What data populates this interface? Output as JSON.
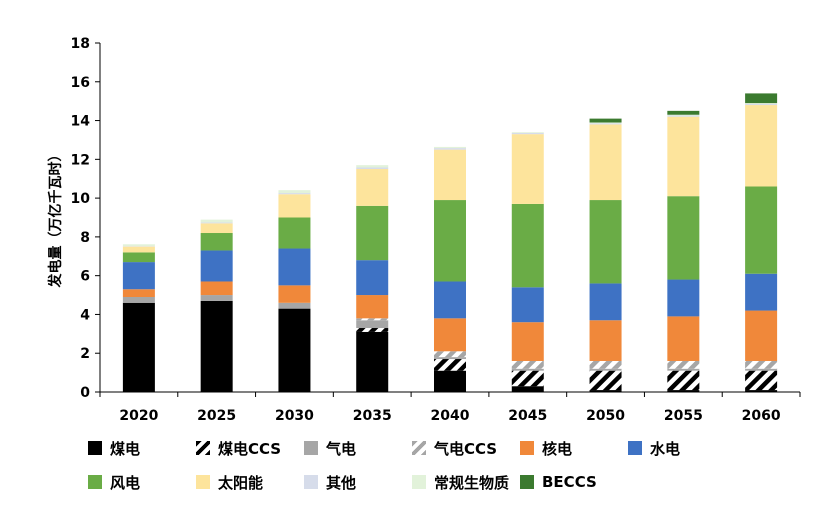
{
  "chart_data": {
    "type": "bar",
    "stacked": true,
    "ylabel": "发电量（万亿千瓦时）",
    "xlabel": "",
    "ylim": [
      0,
      18
    ],
    "yticks": [
      0,
      2,
      4,
      6,
      8,
      10,
      12,
      14,
      16,
      18
    ],
    "categories": [
      "2020",
      "2025",
      "2030",
      "2035",
      "2040",
      "2045",
      "2050",
      "2055",
      "2060"
    ],
    "legend_position": "bottom",
    "grid": false,
    "series": [
      {
        "name": "煤电",
        "color": "#000000",
        "pattern": "solid",
        "values": [
          4.6,
          4.7,
          4.3,
          3.1,
          1.1,
          0.3,
          0.1,
          0.1,
          0.1
        ]
      },
      {
        "name": "煤电CCS",
        "color": "#000000",
        "pattern": "hatch",
        "values": [
          0,
          0,
          0,
          0.2,
          0.6,
          0.8,
          1.0,
          1.0,
          1.0
        ]
      },
      {
        "name": "气电",
        "color": "#a6a6a6",
        "pattern": "solid",
        "values": [
          0.3,
          0.3,
          0.3,
          0.4,
          0.1,
          0.1,
          0.1,
          0.1,
          0.1
        ]
      },
      {
        "name": "气电CCS",
        "color": "#a6a6a6",
        "pattern": "hatch",
        "values": [
          0,
          0,
          0,
          0.1,
          0.3,
          0.4,
          0.4,
          0.4,
          0.4
        ]
      },
      {
        "name": "核电",
        "color": "#f0883a",
        "pattern": "solid",
        "values": [
          0.4,
          0.7,
          0.9,
          1.2,
          1.7,
          2.0,
          2.1,
          2.3,
          2.6
        ]
      },
      {
        "name": "水电",
        "color": "#3e72c4",
        "pattern": "solid",
        "values": [
          1.4,
          1.6,
          1.9,
          1.8,
          1.9,
          1.8,
          1.9,
          1.9,
          1.9
        ]
      },
      {
        "name": "风电",
        "color": "#6aac46",
        "pattern": "solid",
        "values": [
          0.5,
          0.9,
          1.6,
          2.8,
          4.2,
          4.3,
          4.3,
          4.3,
          4.5
        ]
      },
      {
        "name": "太阳能",
        "color": "#fde49c",
        "pattern": "solid",
        "values": [
          0.3,
          0.5,
          1.2,
          1.9,
          2.6,
          3.6,
          3.9,
          4.1,
          4.2
        ]
      },
      {
        "name": "其他",
        "color": "#d6dcea",
        "pattern": "solid",
        "values": [
          0.02,
          0.04,
          0.06,
          0.08,
          0.08,
          0.06,
          0.06,
          0.06,
          0.06
        ]
      },
      {
        "name": "常规生物质",
        "color": "#e2f2da",
        "pattern": "solid",
        "values": [
          0.1,
          0.15,
          0.15,
          0.12,
          0.06,
          0.04,
          0.04,
          0.04,
          0.04
        ]
      },
      {
        "name": "BECCS",
        "color": "#3b7a2f",
        "pattern": "solid",
        "values": [
          0,
          0,
          0,
          0,
          0,
          0,
          0.2,
          0.2,
          0.5
        ]
      }
    ]
  }
}
